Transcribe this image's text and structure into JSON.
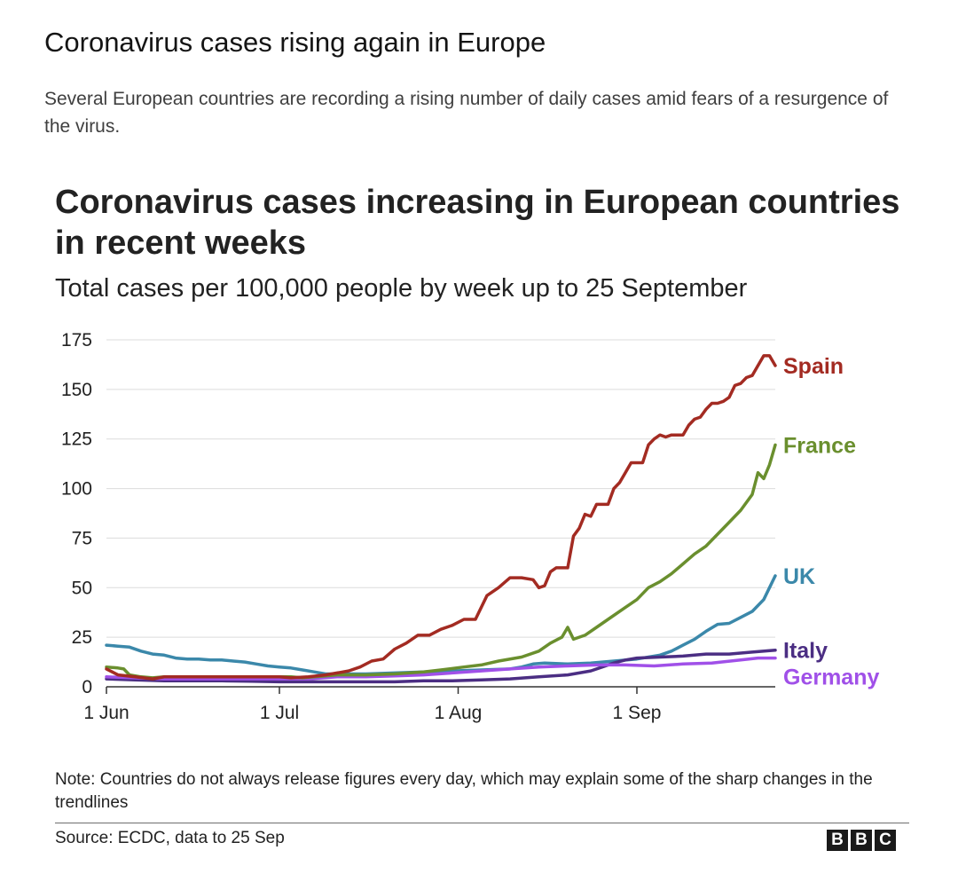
{
  "article": {
    "headline": "Coronavirus cases rising again in Europe",
    "standfirst": "Several European countries are recording a rising number of daily cases amid fears of a resurgence of the virus."
  },
  "chart_data": {
    "type": "line",
    "title": "Coronavirus cases increasing in European countries in recent weeks",
    "subtitle": "Total cases per 100,000 people by week up to 25 September",
    "xlabel": "",
    "ylabel": "",
    "x_unit": "days since 1 Jun",
    "xlim": [
      0,
      116
    ],
    "ylim": [
      0,
      175
    ],
    "grid": true,
    "legend": "direct labels at line ends (right)",
    "y_ticks": [
      0,
      25,
      50,
      75,
      100,
      125,
      150,
      175
    ],
    "x_ticks": [
      {
        "label": "1 Jun",
        "x": 0
      },
      {
        "label": "1 Jul",
        "x": 30
      },
      {
        "label": "1 Aug",
        "x": 61
      },
      {
        "label": "1 Sep",
        "x": 92
      }
    ],
    "series": [
      {
        "name": "UK",
        "color": "#3b88aa",
        "points": [
          [
            0,
            21
          ],
          [
            2,
            20.5
          ],
          [
            4,
            20
          ],
          [
            6,
            18
          ],
          [
            8,
            16.5
          ],
          [
            10,
            16
          ],
          [
            12,
            14.5
          ],
          [
            14,
            14
          ],
          [
            16,
            14
          ],
          [
            18,
            13.5
          ],
          [
            20,
            13.5
          ],
          [
            22,
            13
          ],
          [
            24,
            12.5
          ],
          [
            26,
            11.5
          ],
          [
            28,
            10.5
          ],
          [
            30,
            10
          ],
          [
            32,
            9.5
          ],
          [
            34,
            8.5
          ],
          [
            36,
            7.5
          ],
          [
            38,
            6.5
          ],
          [
            40,
            6.5
          ],
          [
            45,
            6.5
          ],
          [
            50,
            7
          ],
          [
            55,
            7.5
          ],
          [
            60,
            8
          ],
          [
            65,
            8.5
          ],
          [
            70,
            9
          ],
          [
            72,
            10
          ],
          [
            74,
            11.5
          ],
          [
            76,
            12
          ],
          [
            80,
            11.5
          ],
          [
            84,
            12
          ],
          [
            88,
            13
          ],
          [
            92,
            14
          ],
          [
            94,
            15
          ],
          [
            96,
            16
          ],
          [
            98,
            18
          ],
          [
            100,
            21
          ],
          [
            102,
            24
          ],
          [
            104,
            28
          ],
          [
            106,
            31.5
          ],
          [
            108,
            32
          ],
          [
            110,
            35
          ],
          [
            112,
            38
          ],
          [
            114,
            44
          ],
          [
            116,
            56
          ]
        ]
      },
      {
        "name": "Italy",
        "color": "#4b2e83",
        "points": [
          [
            0,
            4
          ],
          [
            5,
            3.5
          ],
          [
            10,
            3
          ],
          [
            15,
            3
          ],
          [
            20,
            3
          ],
          [
            25,
            2.8
          ],
          [
            30,
            2.5
          ],
          [
            35,
            2.5
          ],
          [
            40,
            2.5
          ],
          [
            45,
            2.5
          ],
          [
            50,
            2.5
          ],
          [
            55,
            3
          ],
          [
            60,
            3
          ],
          [
            65,
            3.5
          ],
          [
            70,
            4
          ],
          [
            75,
            5
          ],
          [
            80,
            6
          ],
          [
            82,
            7
          ],
          [
            84,
            8
          ],
          [
            86,
            10
          ],
          [
            88,
            12
          ],
          [
            90,
            13.5
          ],
          [
            92,
            14.5
          ],
          [
            96,
            15
          ],
          [
            100,
            15.5
          ],
          [
            104,
            16.5
          ],
          [
            108,
            16.5
          ],
          [
            112,
            17.5
          ],
          [
            116,
            18.5
          ]
        ]
      },
      {
        "name": "Germany",
        "color": "#a050e8",
        "points": [
          [
            0,
            5
          ],
          [
            10,
            4
          ],
          [
            20,
            4
          ],
          [
            30,
            4
          ],
          [
            35,
            4
          ],
          [
            40,
            5
          ],
          [
            45,
            5
          ],
          [
            50,
            5.5
          ],
          [
            55,
            6
          ],
          [
            60,
            7
          ],
          [
            65,
            8
          ],
          [
            70,
            9
          ],
          [
            75,
            10
          ],
          [
            80,
            10.5
          ],
          [
            85,
            11
          ],
          [
            90,
            11
          ],
          [
            95,
            10.5
          ],
          [
            100,
            11.5
          ],
          [
            105,
            12
          ],
          [
            110,
            13.5
          ],
          [
            113,
            14.5
          ],
          [
            116,
            14.5
          ]
        ]
      },
      {
        "name": "France",
        "color": "#6a8f2e",
        "points": [
          [
            0,
            10
          ],
          [
            2,
            9.5
          ],
          [
            3,
            9
          ],
          [
            4,
            6
          ],
          [
            6,
            5
          ],
          [
            8,
            4.5
          ],
          [
            10,
            5
          ],
          [
            15,
            5
          ],
          [
            20,
            5
          ],
          [
            25,
            5
          ],
          [
            30,
            5
          ],
          [
            32,
            5
          ],
          [
            34,
            4.5
          ],
          [
            36,
            5
          ],
          [
            38,
            5.5
          ],
          [
            40,
            6
          ],
          [
            45,
            6
          ],
          [
            50,
            6.5
          ],
          [
            55,
            7.5
          ],
          [
            58,
            8.5
          ],
          [
            62,
            10
          ],
          [
            65,
            11
          ],
          [
            68,
            13
          ],
          [
            72,
            15
          ],
          [
            75,
            18
          ],
          [
            77,
            22
          ],
          [
            79,
            25
          ],
          [
            80,
            30
          ],
          [
            81,
            24
          ],
          [
            83,
            26
          ],
          [
            85,
            30
          ],
          [
            87,
            34
          ],
          [
            90,
            40
          ],
          [
            92,
            44
          ],
          [
            94,
            50
          ],
          [
            96,
            53
          ],
          [
            98,
            57
          ],
          [
            100,
            62
          ],
          [
            102,
            67
          ],
          [
            104,
            71
          ],
          [
            106,
            77
          ],
          [
            108,
            83
          ],
          [
            110,
            89
          ],
          [
            112,
            97
          ],
          [
            113,
            108
          ],
          [
            114,
            105
          ],
          [
            115,
            112
          ],
          [
            116,
            122
          ]
        ]
      },
      {
        "name": "Spain",
        "color": "#a32b22",
        "points": [
          [
            0,
            9
          ],
          [
            2,
            6
          ],
          [
            5,
            5
          ],
          [
            8,
            4
          ],
          [
            10,
            5
          ],
          [
            15,
            5
          ],
          [
            20,
            5
          ],
          [
            25,
            5
          ],
          [
            30,
            5
          ],
          [
            32,
            4.5
          ],
          [
            35,
            5
          ],
          [
            38,
            6
          ],
          [
            40,
            7
          ],
          [
            42,
            8
          ],
          [
            44,
            10
          ],
          [
            46,
            13
          ],
          [
            48,
            14
          ],
          [
            50,
            19
          ],
          [
            52,
            22
          ],
          [
            54,
            26
          ],
          [
            56,
            26
          ],
          [
            58,
            29
          ],
          [
            60,
            31
          ],
          [
            62,
            34
          ],
          [
            64,
            34
          ],
          [
            66,
            46
          ],
          [
            68,
            50
          ],
          [
            70,
            55
          ],
          [
            72,
            55
          ],
          [
            74,
            54
          ],
          [
            75,
            50
          ],
          [
            76,
            51
          ],
          [
            77,
            58
          ],
          [
            78,
            60
          ],
          [
            80,
            60
          ],
          [
            81,
            76
          ],
          [
            82,
            80
          ],
          [
            83,
            87
          ],
          [
            84,
            86
          ],
          [
            85,
            92
          ],
          [
            87,
            92
          ],
          [
            88,
            100
          ],
          [
            89,
            103
          ],
          [
            90,
            108
          ],
          [
            91,
            113
          ],
          [
            93,
            113
          ],
          [
            94,
            122
          ],
          [
            95,
            125
          ],
          [
            96,
            127
          ],
          [
            97,
            126
          ],
          [
            98,
            127
          ],
          [
            100,
            127
          ],
          [
            101,
            132
          ],
          [
            102,
            135
          ],
          [
            103,
            136
          ],
          [
            104,
            140
          ],
          [
            105,
            143
          ],
          [
            106,
            143
          ],
          [
            107,
            144
          ],
          [
            108,
            146
          ],
          [
            109,
            152
          ],
          [
            110,
            153
          ],
          [
            111,
            156
          ],
          [
            112,
            157
          ],
          [
            113,
            162
          ],
          [
            114,
            167
          ],
          [
            115,
            167
          ],
          [
            116,
            162
          ]
        ]
      }
    ],
    "note": "Note: Countries do not always release figures every day, which may explain some of the sharp changes in the trendlines",
    "source": "Source: ECDC, data to 25 Sep"
  },
  "branding": {
    "logo_letters": [
      "B",
      "B",
      "C"
    ]
  }
}
